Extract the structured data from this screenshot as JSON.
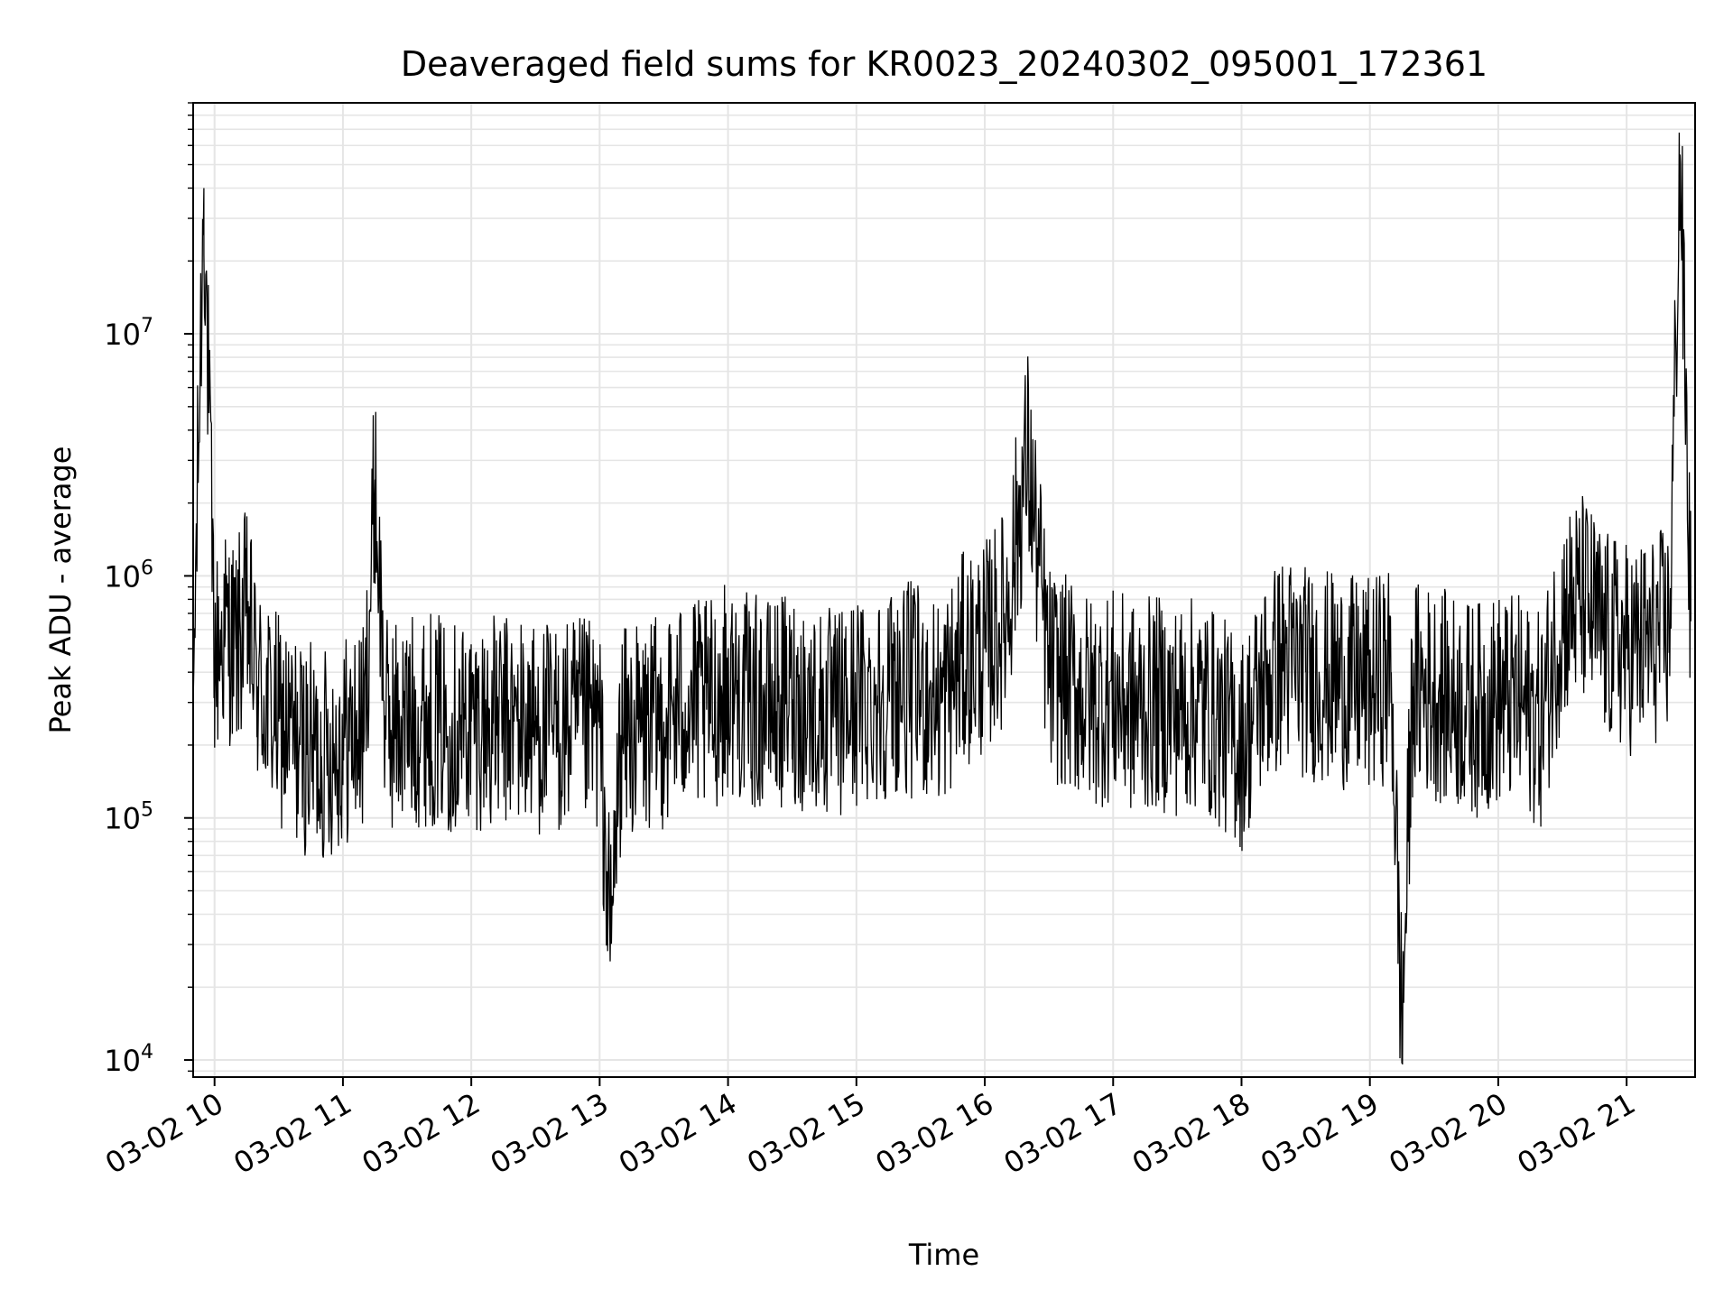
{
  "chart_data": {
    "type": "line",
    "title": "Deaveraged field sums for KR0023_20240302_095001_172361",
    "xlabel": "Time",
    "ylabel": "Peak ADU - average",
    "yscale": "log",
    "ylim": [
      8500,
      90000000
    ],
    "xlim": [
      "2024-03-02 09:50",
      "2024-03-02 21:32"
    ],
    "grid": true,
    "line_color": "#000000",
    "grid_color": "#e5e5e5",
    "x_ticks": [
      {
        "label": "03-02 10",
        "time": "2024-03-02 10:00"
      },
      {
        "label": "03-02 11",
        "time": "2024-03-02 11:00"
      },
      {
        "label": "03-02 12",
        "time": "2024-03-02 12:00"
      },
      {
        "label": "03-02 13",
        "time": "2024-03-02 13:00"
      },
      {
        "label": "03-02 14",
        "time": "2024-03-02 14:00"
      },
      {
        "label": "03-02 15",
        "time": "2024-03-02 15:00"
      },
      {
        "label": "03-02 16",
        "time": "2024-03-02 16:00"
      },
      {
        "label": "03-02 17",
        "time": "2024-03-02 17:00"
      },
      {
        "label": "03-02 18",
        "time": "2024-03-02 18:00"
      },
      {
        "label": "03-02 19",
        "time": "2024-03-02 19:00"
      },
      {
        "label": "03-02 20",
        "time": "2024-03-02 20:00"
      },
      {
        "label": "03-02 21",
        "time": "2024-03-02 21:00"
      }
    ],
    "y_ticks": [
      {
        "base": "10",
        "exp": "4",
        "value": 10000
      },
      {
        "base": "10",
        "exp": "5",
        "value": 100000
      },
      {
        "base": "10",
        "exp": "6",
        "value": 1000000
      },
      {
        "base": "10",
        "exp": "7",
        "value": 10000000
      }
    ],
    "series": [
      {
        "x": [
          "09:50",
          "09:55",
          "10:00",
          "10:05",
          "10:10",
          "10:15",
          "10:20",
          "10:30",
          "10:40",
          "10:50",
          "11:00",
          "11:10",
          "11:15",
          "11:20",
          "11:30",
          "11:40",
          "11:50",
          "12:00",
          "12:10",
          "12:20",
          "12:30",
          "12:40",
          "12:50",
          "13:00",
          "13:05",
          "13:10",
          "13:20",
          "13:30",
          "13:40",
          "13:50",
          "14:00",
          "14:10",
          "14:20",
          "14:30",
          "14:40",
          "14:50",
          "15:00",
          "15:10",
          "15:20",
          "15:30",
          "15:40",
          "15:50",
          "16:00",
          "16:10",
          "16:20",
          "16:30",
          "16:40",
          "16:50",
          "17:00",
          "17:10",
          "17:20",
          "17:30",
          "17:40",
          "17:50",
          "18:00",
          "18:10",
          "18:20",
          "18:30",
          "18:40",
          "18:50",
          "19:00",
          "19:10",
          "19:15",
          "19:20",
          "19:30",
          "19:40",
          "19:50",
          "20:00",
          "20:10",
          "20:20",
          "20:30",
          "20:40",
          "20:50",
          "21:00",
          "21:10",
          "21:20",
          "21:25",
          "21:30"
        ],
        "y": [
          300000,
          40000000,
          450000,
          600000,
          500000,
          700000,
          350000,
          250000,
          200000,
          180000,
          210000,
          230000,
          2500000,
          240000,
          250000,
          260000,
          240000,
          250000,
          245000,
          250000,
          240000,
          230000,
          240000,
          235000,
          30000,
          220000,
          230000,
          250000,
          300000,
          280000,
          350000,
          300000,
          290000,
          310000,
          280000,
          260000,
          300000,
          320000,
          350000,
          330000,
          300000,
          450000,
          500000,
          700000,
          3200000,
          400000,
          350000,
          300000,
          320000,
          280000,
          300000,
          280000,
          300000,
          250000,
          200000,
          350000,
          450000,
          400000,
          380000,
          360000,
          350000,
          400000,
          13000,
          350000,
          330000,
          300000,
          280000,
          310000,
          300000,
          250000,
          700000,
          800000,
          550000,
          500000,
          520000,
          600000,
          55000000,
          650000
        ]
      }
    ]
  }
}
